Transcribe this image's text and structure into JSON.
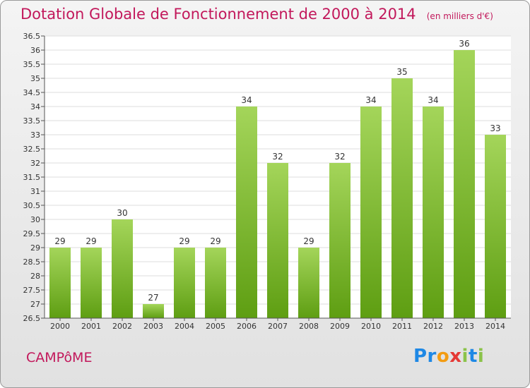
{
  "chart_data": {
    "type": "bar",
    "title": "Dotation Globale de Fonctionnement de 2000 à 2014",
    "subtitle": "(en milliers d'€)",
    "categories": [
      "2000",
      "2001",
      "2002",
      "2003",
      "2004",
      "2005",
      "2006",
      "2007",
      "2008",
      "2009",
      "2010",
      "2011",
      "2012",
      "2013",
      "2014"
    ],
    "values": [
      29,
      29,
      30,
      27,
      29,
      29,
      34,
      32,
      29,
      32,
      34,
      35,
      34,
      36,
      33
    ],
    "ylim": [
      26.5,
      36.5
    ],
    "yticks": [
      "26.5",
      "27",
      "27.5",
      "28",
      "28.5",
      "29",
      "29.5",
      "30",
      "30.5",
      "31",
      "31.5",
      "32",
      "32.5",
      "33",
      "33.5",
      "34",
      "34.5",
      "35",
      "35.5",
      "36",
      "36.5"
    ],
    "grid": true,
    "bar_color_top": "#a4d55a",
    "bar_color_bottom": "#5e9e12"
  },
  "commune": "CAMPôME",
  "logo": {
    "parts": [
      "Pr",
      "o",
      "x",
      "i",
      "t",
      "i"
    ],
    "colors": [
      "#1e88e5",
      "#f39c12",
      "#8bc34a",
      "#e53935"
    ]
  }
}
